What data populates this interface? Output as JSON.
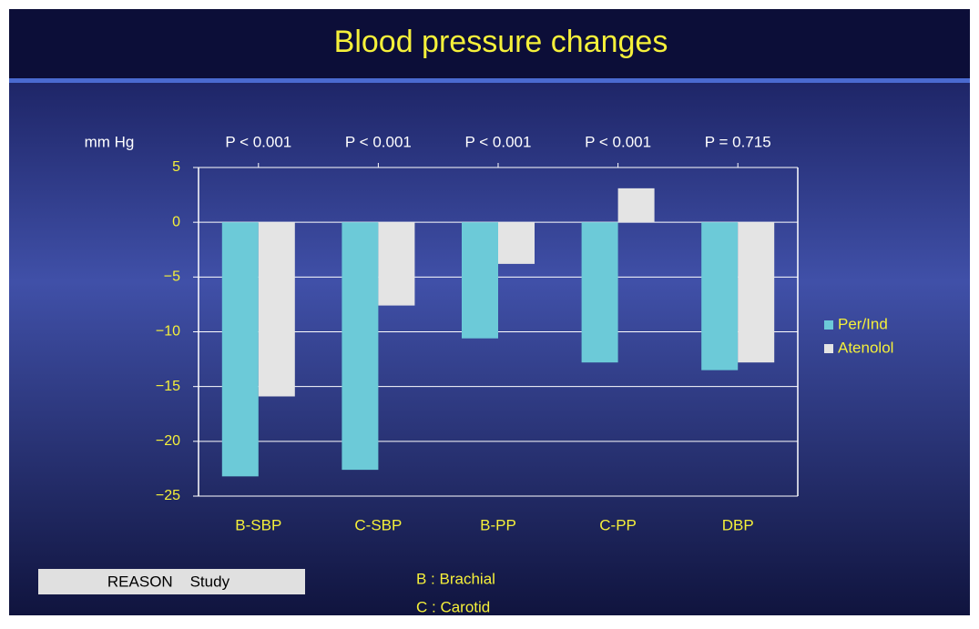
{
  "chart_data": {
    "type": "bar",
    "title": "Blood pressure changes",
    "y_label": "mm Hg",
    "categories": [
      "B-SBP",
      "C-SBP",
      "B-PP",
      "C-PP",
      "DBP"
    ],
    "annotations": [
      "P < 0.001",
      "P < 0.001",
      "P < 0.001",
      "P < 0.001",
      "P = 0.715"
    ],
    "series": [
      {
        "name": "Per/Ind",
        "color": "#6ccad8",
        "values": [
          -23.2,
          -22.6,
          -10.6,
          -12.8,
          -13.5
        ]
      },
      {
        "name": "Atenolol",
        "color": "#e4e4e4",
        "values": [
          -15.9,
          -7.6,
          -3.8,
          3.1,
          -12.8
        ]
      }
    ],
    "ylim": [
      -25,
      5
    ],
    "yticks": [
      {
        "value": -25,
        "label": "−25"
      },
      {
        "value": -20,
        "label": "−20"
      },
      {
        "value": -15,
        "label": "−15"
      },
      {
        "value": -10,
        "label": "−10"
      },
      {
        "value": -5,
        "label": "−5"
      },
      0,
      5
    ],
    "grid": true,
    "legend": "right"
  },
  "footer": {
    "study": "REASON    Study",
    "notes": [
      "B : Brachial",
      "C : Carotid"
    ]
  }
}
